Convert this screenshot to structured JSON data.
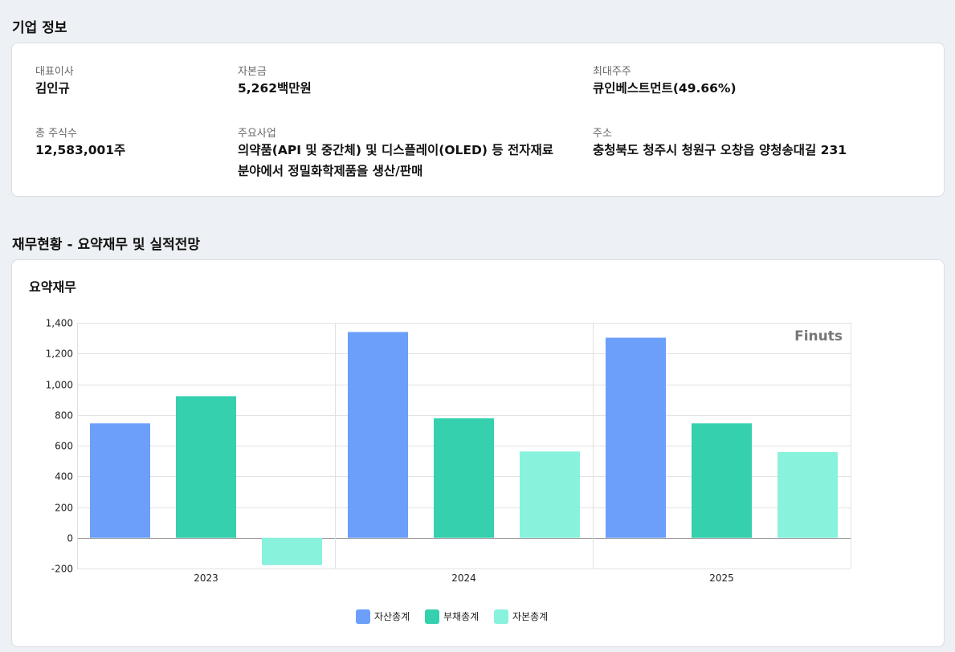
{
  "company_section": {
    "title": "기업 정보",
    "ceo": {
      "label": "대표이사",
      "value": "김인규"
    },
    "capital": {
      "label": "자본금",
      "value": "5,262백만원"
    },
    "major_shareholder": {
      "label": "최대주주",
      "value": "큐인베스트먼트(49.66%)"
    },
    "total_shares": {
      "label": "총 주식수",
      "value": "12,583,001주"
    },
    "main_business": {
      "label": "주요사업",
      "value_line1": "의약품(API 및 중간체) 및 디스플레이(OLED) 등 전자재료",
      "value_line2": "분야에서 정밀화학제품을 생산/판매"
    },
    "address": {
      "label": "주소",
      "value": "충청북도 청주시 청원구 오창읍 양청송대길 231"
    }
  },
  "finance_section": {
    "title": "재무현황 - 요약재무 및 실적전망",
    "card_title": "요약재무",
    "watermark": "Finuts"
  },
  "chart_data": {
    "type": "bar",
    "categories": [
      "2023",
      "2024",
      "2025"
    ],
    "series": [
      {
        "name": "자산총계",
        "values": [
          745,
          1340,
          1303
        ],
        "color": "#6b9ffa"
      },
      {
        "name": "부채총계",
        "values": [
          922,
          778,
          745
        ],
        "color": "#35d0ae"
      },
      {
        "name": "자본총계",
        "values": [
          -178,
          562,
          558
        ],
        "color": "#89f2dc"
      }
    ],
    "ylim": [
      -200,
      1400
    ],
    "yticks": [
      1400,
      1200,
      1000,
      800,
      600,
      400,
      200,
      0,
      -200
    ],
    "ytick_labels": [
      "1,400",
      "1,200",
      "1,000",
      "800",
      "600",
      "400",
      "200",
      "0",
      "-200"
    ],
    "grid": true,
    "legend_position": "bottom-center",
    "title": "",
    "xlabel": "",
    "ylabel": ""
  }
}
